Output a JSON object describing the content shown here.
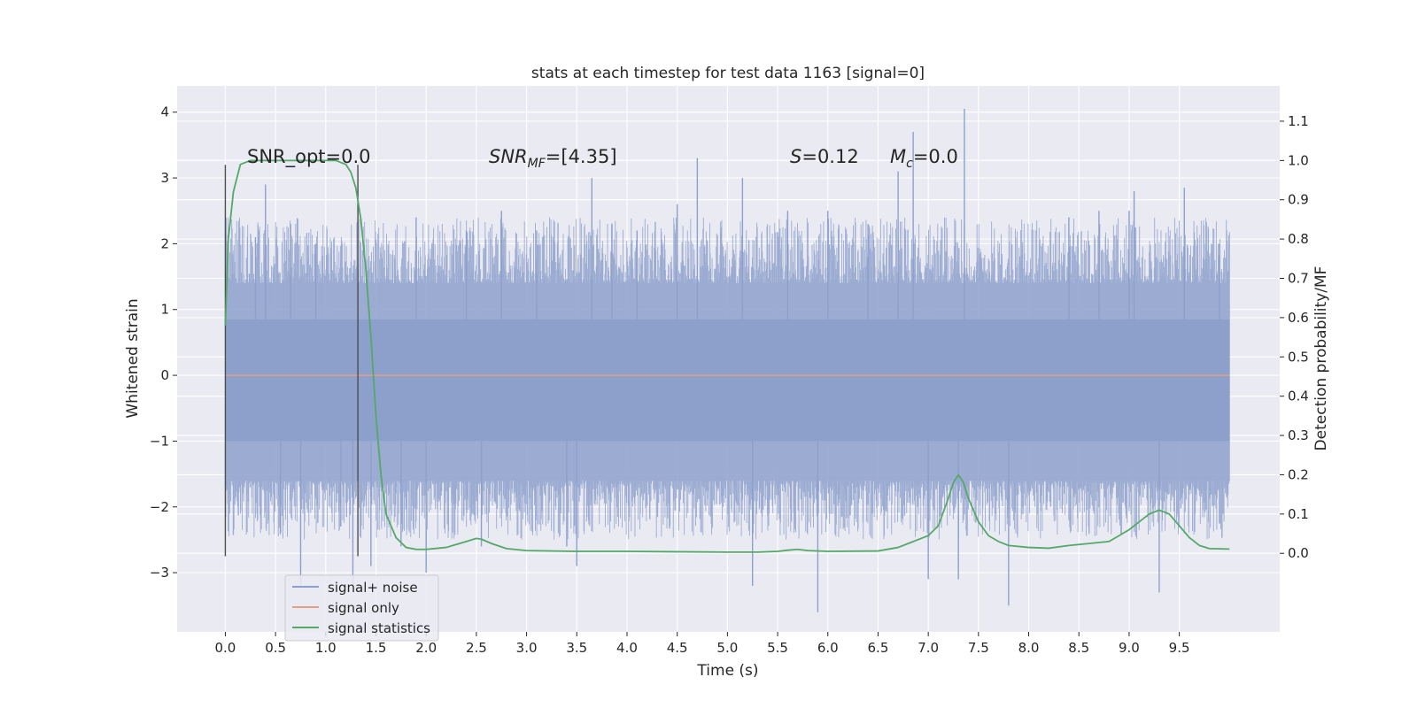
{
  "chart_data": {
    "type": "line",
    "title": "stats at each timestep for test data 1163 [signal=0]",
    "xlabel": "Time (s)",
    "ylabel": "Whitened strain",
    "ylabel_right": "Detection probability/MF",
    "xlim": [
      -0.48,
      10.5
    ],
    "ylim": [
      -3.9,
      4.4
    ],
    "ylim_right": [
      -0.2,
      1.19
    ],
    "x_ticks": [
      "0.0",
      "0.5",
      "1.0",
      "1.5",
      "2.0",
      "2.5",
      "3.0",
      "3.5",
      "4.0",
      "4.5",
      "5.0",
      "5.5",
      "6.0",
      "6.5",
      "7.0",
      "7.5",
      "8.0",
      "8.5",
      "9.0",
      "9.5"
    ],
    "y_ticks": [
      "−3",
      "−2",
      "−1",
      "0",
      "1",
      "2",
      "3",
      "4"
    ],
    "y_ticks_right": [
      "0.0",
      "0.1",
      "0.2",
      "0.3",
      "0.4",
      "0.5",
      "0.6",
      "0.7",
      "0.8",
      "0.9",
      "1.0",
      "1.1"
    ],
    "grid": true,
    "legend_position": "lower-left",
    "legend": [
      "signal+ noise",
      "signal only",
      "signal statistics"
    ],
    "annotations": {
      "snr_opt": "SNR_opt=0.0",
      "snr_mf_main": "SNR",
      "snr_mf_sub": "MF",
      "snr_mf_value": "=[4.35]",
      "s_symbol": "S",
      "s_value": "=0.12",
      "mc_symbol": "M",
      "mc_sub": "c",
      "mc_value": "=0.0"
    },
    "vlines_x": [
      0.0,
      1.32
    ],
    "vline_range": [
      -2.75,
      3.2
    ],
    "colors": {
      "signal_noise": "#8da0cb",
      "signal_only": "#e39f86",
      "signal_statistics": "#55a868",
      "vline": "#4d4d4d",
      "axes_bg": "#eaeaf2",
      "grid": "#ffffff"
    },
    "series": [
      {
        "name": "signal+ noise",
        "x_range": [
          0.0,
          10.0
        ],
        "band_typical": [
          -1.6,
          1.4
        ],
        "spikes": [
          {
            "x": 0.3,
            "y": 2.1
          },
          {
            "x": 0.4,
            "y": 2.9
          },
          {
            "x": 0.55,
            "y": -2.4
          },
          {
            "x": 0.65,
            "y": 2.3
          },
          {
            "x": 0.75,
            "y": -3.2
          },
          {
            "x": 0.9,
            "y": 2.0
          },
          {
            "x": 1.15,
            "y": -2.3
          },
          {
            "x": 1.27,
            "y": -3.2
          },
          {
            "x": 1.45,
            "y": -2.9
          },
          {
            "x": 1.75,
            "y": -2.6
          },
          {
            "x": 1.9,
            "y": 2.4
          },
          {
            "x": 2.0,
            "y": -3.0
          },
          {
            "x": 2.4,
            "y": 2.2
          },
          {
            "x": 2.55,
            "y": -2.6
          },
          {
            "x": 2.75,
            "y": 2.5
          },
          {
            "x": 3.1,
            "y": 2.2
          },
          {
            "x": 3.4,
            "y": -2.6
          },
          {
            "x": 3.5,
            "y": -2.9
          },
          {
            "x": 3.65,
            "y": 3.0
          },
          {
            "x": 3.85,
            "y": 2.3
          },
          {
            "x": 4.1,
            "y": 2.2
          },
          {
            "x": 4.5,
            "y": 2.6
          },
          {
            "x": 4.7,
            "y": 3.3
          },
          {
            "x": 5.15,
            "y": 3.0
          },
          {
            "x": 5.25,
            "y": -3.2
          },
          {
            "x": 5.6,
            "y": 2.5
          },
          {
            "x": 5.9,
            "y": -3.6
          },
          {
            "x": 6.0,
            "y": 2.5
          },
          {
            "x": 6.4,
            "y": 2.3
          },
          {
            "x": 6.7,
            "y": 3.1
          },
          {
            "x": 6.85,
            "y": 3.7
          },
          {
            "x": 7.0,
            "y": -3.1
          },
          {
            "x": 7.3,
            "y": -3.1
          },
          {
            "x": 7.36,
            "y": 4.05
          },
          {
            "x": 7.8,
            "y": -3.5
          },
          {
            "x": 8.4,
            "y": 2.4
          },
          {
            "x": 8.7,
            "y": 2.5
          },
          {
            "x": 9.0,
            "y": 2.5
          },
          {
            "x": 9.05,
            "y": 2.8
          },
          {
            "x": 9.3,
            "y": -3.3
          },
          {
            "x": 9.55,
            "y": 2.85
          },
          {
            "x": 9.9,
            "y": 2.0
          }
        ]
      },
      {
        "name": "signal only",
        "x": [
          0.0,
          10.0
        ],
        "y": [
          0.0,
          0.0
        ]
      },
      {
        "name": "signal statistics",
        "axis": "right",
        "x": [
          0.0,
          0.03,
          0.08,
          0.15,
          0.25,
          0.4,
          0.6,
          0.8,
          1.0,
          1.1,
          1.2,
          1.25,
          1.3,
          1.35,
          1.4,
          1.45,
          1.5,
          1.55,
          1.6,
          1.7,
          1.8,
          1.9,
          2.0,
          2.2,
          2.4,
          2.5,
          2.55,
          2.65,
          2.8,
          3.0,
          3.5,
          4.0,
          4.5,
          5.0,
          5.3,
          5.5,
          5.6,
          5.7,
          5.8,
          6.0,
          6.5,
          6.7,
          6.8,
          6.9,
          7.0,
          7.1,
          7.2,
          7.25,
          7.3,
          7.35,
          7.4,
          7.5,
          7.6,
          7.7,
          7.8,
          8.0,
          8.2,
          8.4,
          8.6,
          8.8,
          9.0,
          9.1,
          9.2,
          9.3,
          9.4,
          9.5,
          9.6,
          9.7,
          9.8,
          10.0
        ],
        "y": [
          0.58,
          0.8,
          0.92,
          0.99,
          1.0,
          1.0,
          1.0,
          1.0,
          1.0,
          1.0,
          0.99,
          0.97,
          0.93,
          0.85,
          0.72,
          0.55,
          0.35,
          0.2,
          0.1,
          0.04,
          0.015,
          0.01,
          0.01,
          0.015,
          0.03,
          0.038,
          0.036,
          0.025,
          0.012,
          0.007,
          0.005,
          0.005,
          0.004,
          0.003,
          0.003,
          0.005,
          0.008,
          0.01,
          0.007,
          0.005,
          0.006,
          0.015,
          0.025,
          0.035,
          0.045,
          0.07,
          0.14,
          0.18,
          0.2,
          0.18,
          0.14,
          0.08,
          0.045,
          0.03,
          0.02,
          0.015,
          0.013,
          0.02,
          0.025,
          0.03,
          0.06,
          0.08,
          0.1,
          0.11,
          0.1,
          0.07,
          0.04,
          0.02,
          0.012,
          0.011
        ]
      }
    ]
  }
}
